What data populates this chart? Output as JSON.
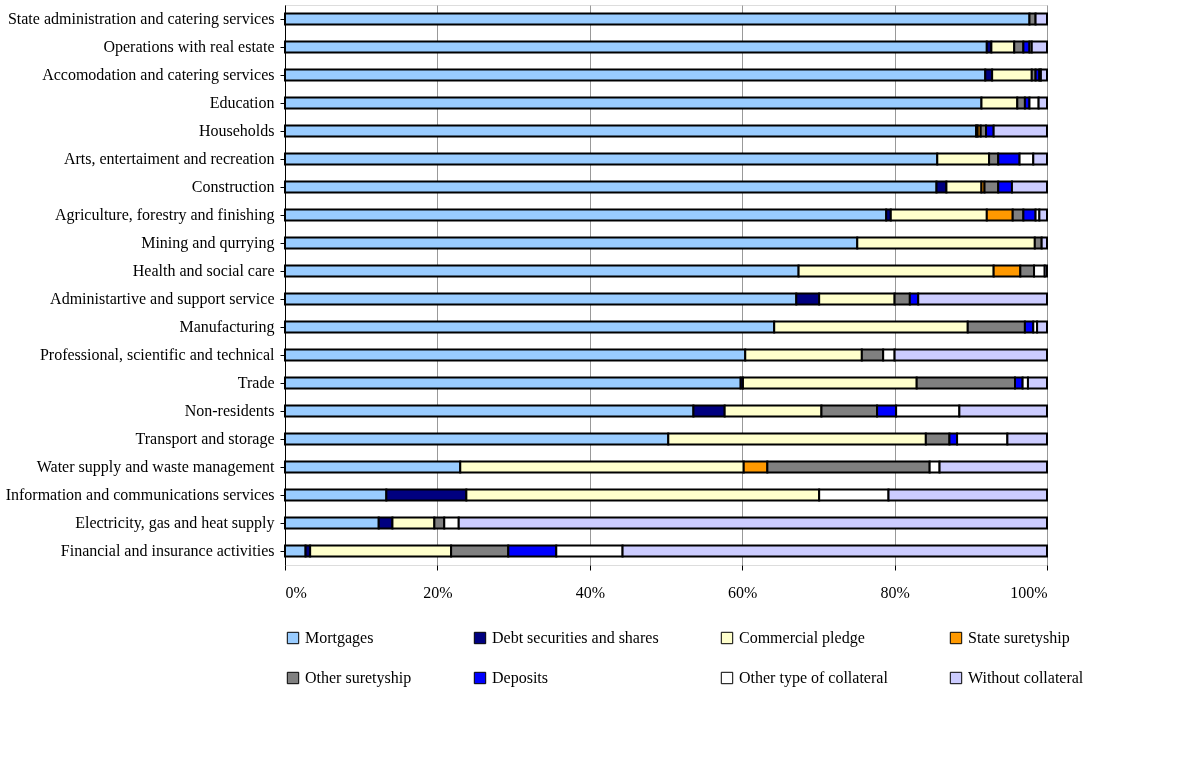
{
  "chart_data": {
    "type": "bar",
    "orientation": "horizontal",
    "stacked": true,
    "categories": [
      "State administration and catering services",
      "Operations with real estate",
      "Accomodation and catering services",
      "Education",
      "Households",
      "Arts, entertaiment and recreation",
      "Construction",
      "Agriculture, forestry and finishing",
      "Mining and qurrying",
      "Health and social care",
      "Administartive and support service",
      "Manufacturing",
      "Professional, scientific and technical",
      "Trade",
      "Non-residents",
      "Transport and storage",
      "Water supply and waste management",
      "Information and communications services",
      "Electricity, gas and heat supply",
      "Financial and insurance activities"
    ],
    "series": [
      {
        "name": "Mortgages",
        "color": "#99ccff",
        "values": [
          97.7,
          92.1,
          91.9,
          91.4,
          90.7,
          85.6,
          85.5,
          78.9,
          75.1,
          67.4,
          67.1,
          64.2,
          60.4,
          59.8,
          53.6,
          50.3,
          23.0,
          13.3,
          12.3,
          2.7
        ]
      },
      {
        "name": "Debt securities and shares",
        "color": "#000080",
        "values": [
          null,
          0.6,
          0.9,
          null,
          0.2,
          null,
          1.3,
          0.6,
          null,
          null,
          3.0,
          null,
          null,
          0.3,
          4.1,
          null,
          null,
          10.5,
          1.8,
          0.6
        ]
      },
      {
        "name": "Commercial pledge",
        "color": "#ffffcc",
        "values": [
          null,
          3.0,
          5.2,
          4.7,
          null,
          6.8,
          4.6,
          12.6,
          23.3,
          25.6,
          9.9,
          25.4,
          15.3,
          22.8,
          12.7,
          33.8,
          37.2,
          46.3,
          5.5,
          18.5
        ]
      },
      {
        "name": "State suretyship",
        "color": "#ff9900",
        "values": [
          null,
          null,
          null,
          null,
          0.4,
          null,
          0.4,
          3.4,
          null,
          3.5,
          null,
          null,
          null,
          null,
          null,
          null,
          3.1,
          null,
          null,
          null
        ]
      },
      {
        "name": "Other suretyship",
        "color": "#808080",
        "values": [
          0.8,
          1.2,
          0.5,
          1.0,
          0.7,
          1.2,
          1.8,
          1.4,
          0.9,
          1.8,
          2.0,
          7.5,
          2.8,
          12.9,
          7.3,
          3.1,
          21.3,
          null,
          1.3,
          7.5
        ]
      },
      {
        "name": "Deposits",
        "color": "#0000ff",
        "values": [
          null,
          0.8,
          0.5,
          0.6,
          1.0,
          2.8,
          1.8,
          1.6,
          null,
          null,
          1.1,
          1.1,
          null,
          1.0,
          2.5,
          1.0,
          null,
          null,
          null,
          6.3
        ]
      },
      {
        "name": "Other type of collateral",
        "color": "#ffffff",
        "values": [
          null,
          0.3,
          0.2,
          1.2,
          null,
          1.8,
          null,
          0.5,
          null,
          1.4,
          null,
          0.5,
          1.5,
          0.7,
          8.3,
          6.6,
          1.3,
          9.1,
          1.9,
          8.7
        ]
      },
      {
        "name": "Without collateral",
        "color": "#ccccff",
        "values": [
          1.5,
          2.0,
          0.8,
          1.1,
          7.0,
          1.8,
          4.6,
          1.0,
          0.7,
          0.3,
          16.9,
          1.3,
          20.0,
          2.5,
          11.5,
          5.2,
          14.1,
          20.8,
          77.2,
          55.7
        ]
      }
    ],
    "xlim": [
      0,
      100
    ],
    "xticks": [
      {
        "value": 0,
        "label": "0%"
      },
      {
        "value": 20,
        "label": "20%"
      },
      {
        "value": 40,
        "label": "40%"
      },
      {
        "value": 60,
        "label": "60%"
      },
      {
        "value": 80,
        "label": "80%"
      },
      {
        "value": 100,
        "label": "100%"
      }
    ],
    "grid": "x",
    "legend": "bottom"
  }
}
